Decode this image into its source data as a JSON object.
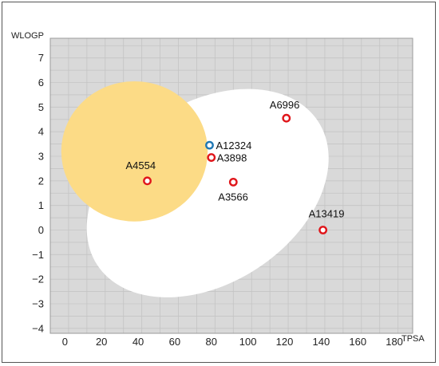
{
  "chart_data": {
    "type": "scatter",
    "title": "",
    "xlabel": "TPSA",
    "ylabel": "WLOGP",
    "xlim": [
      -8,
      190
    ],
    "ylim": [
      -4.2,
      7.8
    ],
    "xticks": [
      0,
      20,
      40,
      60,
      80,
      100,
      120,
      140,
      160,
      180
    ],
    "yticks": [
      -4,
      -3,
      -2,
      -1,
      0,
      1,
      2,
      3,
      4,
      5,
      6,
      7
    ],
    "grid": true,
    "regions": [
      {
        "name": "white",
        "color": "#ffffff",
        "center": [
          78,
          1.5
        ],
        "semi_axes": [
          72,
          4.7
        ],
        "rotation_deg": -33
      },
      {
        "name": "yolk",
        "color": "#fcdb86",
        "center": [
          38,
          3.2
        ],
        "semi_axes": [
          40,
          2.85
        ],
        "rotation_deg": 0
      }
    ],
    "points": [
      {
        "label": "A4554",
        "x": 45,
        "y": 2.0,
        "color": "#e0161b"
      },
      {
        "label": "A12324",
        "x": 79,
        "y": 3.45,
        "color": "#1f77b4"
      },
      {
        "label": "A3898",
        "x": 80,
        "y": 2.95,
        "color": "#e0161b"
      },
      {
        "label": "A3566",
        "x": 92,
        "y": 1.95,
        "color": "#e0161b"
      },
      {
        "label": "A6996",
        "x": 121,
        "y": 4.55,
        "color": "#e0161b"
      },
      {
        "label": "A13419",
        "x": 141,
        "y": 0.0,
        "color": "#e0161b"
      }
    ]
  }
}
